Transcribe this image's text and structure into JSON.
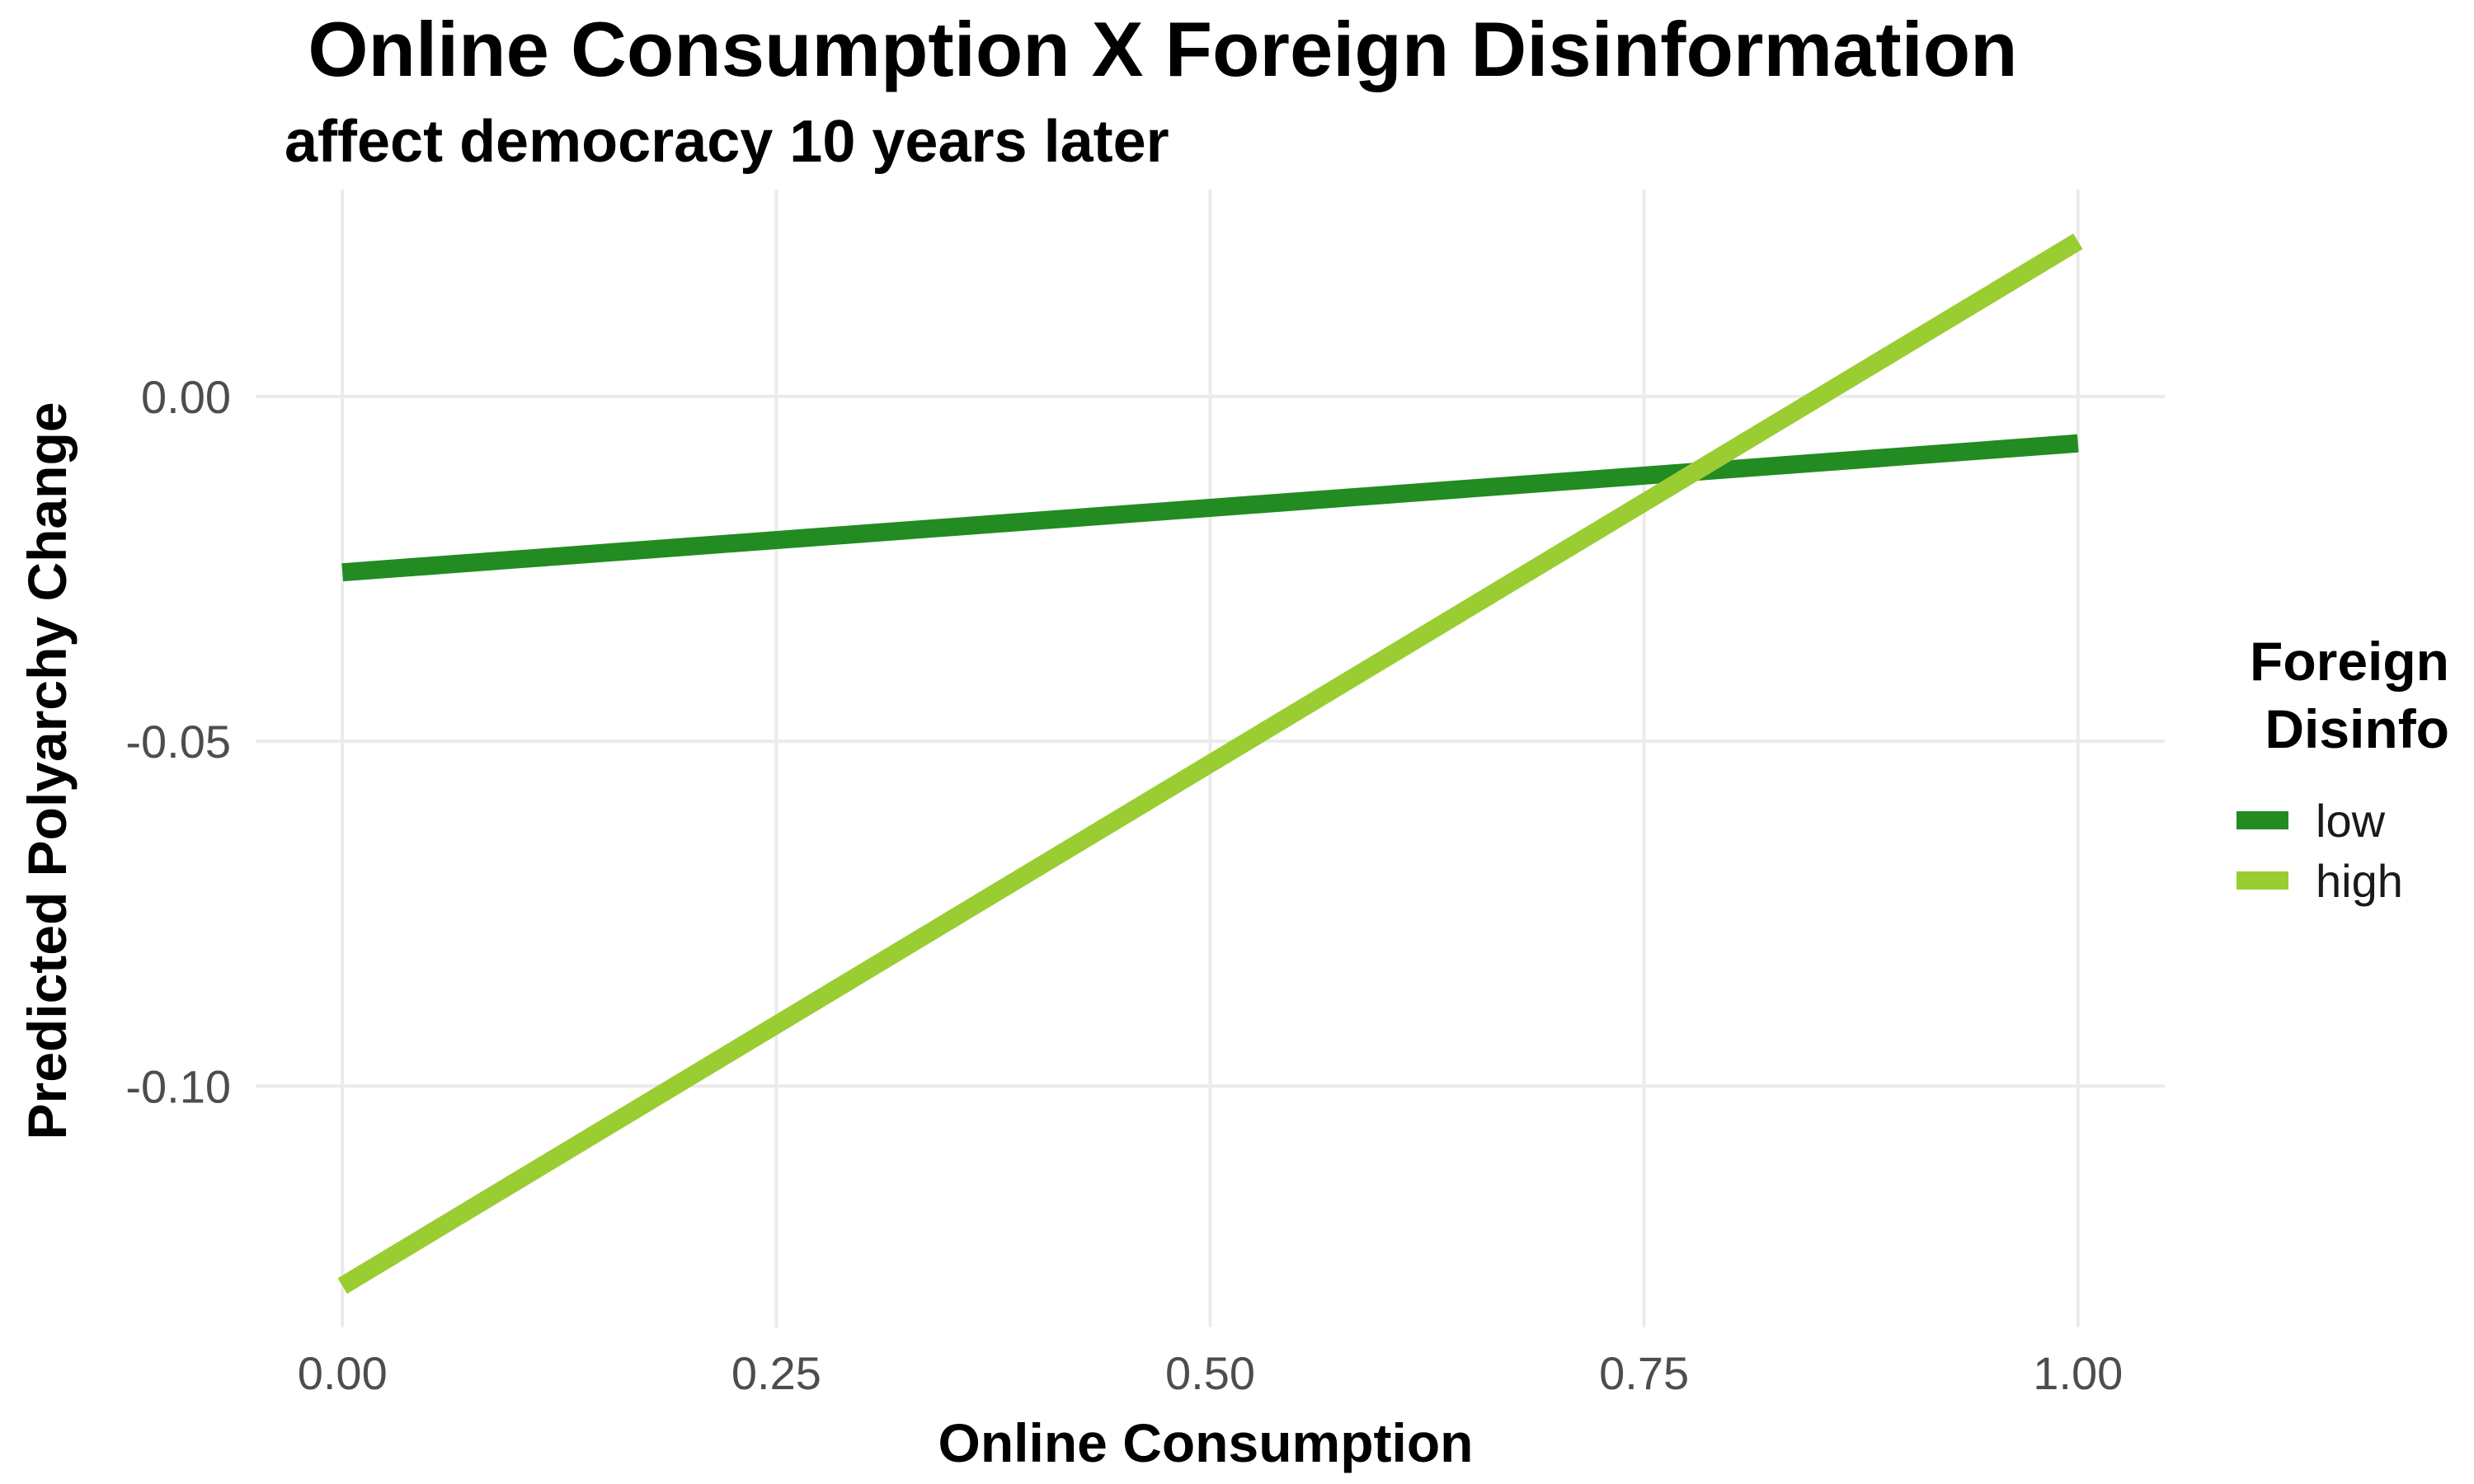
{
  "chart_data": {
    "type": "line",
    "title": "Online Consumption X Foreign Disinformation",
    "subtitle": "affect democracy 10 years later",
    "xlabel": "Online Consumption",
    "ylabel": "Predicted Polyarchy Change",
    "xlim": [
      -0.05,
      1.05
    ],
    "ylim": [
      -0.135,
      0.03
    ],
    "x_ticks": [
      0,
      0.25,
      0.5,
      0.75,
      1
    ],
    "x_tick_labels": [
      "0.00",
      "0.25",
      "0.50",
      "0.75",
      "1.00"
    ],
    "y_ticks": [
      0,
      -0.05,
      -0.1
    ],
    "y_tick_labels": [
      "0.00",
      "-0.05",
      "-0.10"
    ],
    "grid": true,
    "legend": {
      "title_lines": [
        "Foreign",
        "Disinfo"
      ],
      "placement": "right"
    },
    "series": [
      {
        "name": "low",
        "color": "#228B22",
        "x": [
          0,
          1
        ],
        "y": [
          -0.0255,
          -0.0068
        ]
      },
      {
        "name": "high",
        "color": "#9ACD32",
        "x": [
          0,
          1
        ],
        "y": [
          -0.129,
          0.0225
        ]
      }
    ]
  }
}
